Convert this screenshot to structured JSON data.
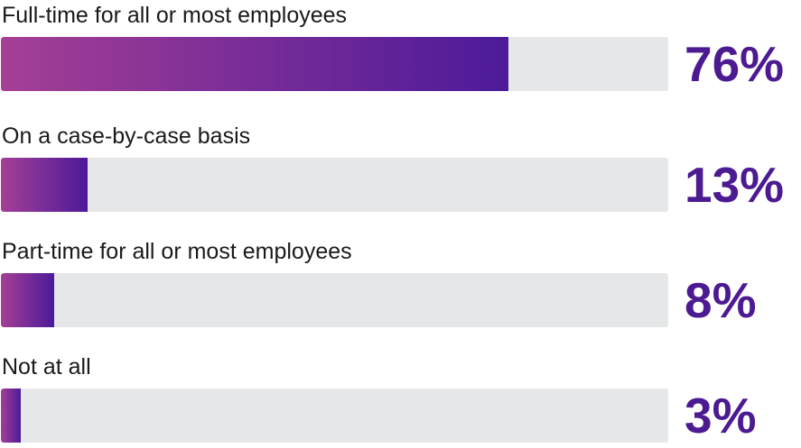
{
  "chart_data": {
    "type": "bar",
    "orientation": "horizontal",
    "categories": [
      "Full-time for all or most employees",
      "On a case-by-case basis",
      "Part-time for all or most employees",
      "Not at all"
    ],
    "values": [
      76,
      13,
      8,
      3
    ],
    "value_labels": [
      "76%",
      "13%",
      "8%",
      "3%"
    ],
    "xlim": [
      0,
      100
    ],
    "title": "",
    "xlabel": "",
    "ylabel": "",
    "grid": false,
    "legend": "none"
  },
  "colors": {
    "bar_gradient_start": "#a53f95",
    "bar_gradient_end": "#4c1a9a",
    "track": "#e6e7e8",
    "value_text": "#4c1a91",
    "label_text": "#1a1a1a"
  }
}
